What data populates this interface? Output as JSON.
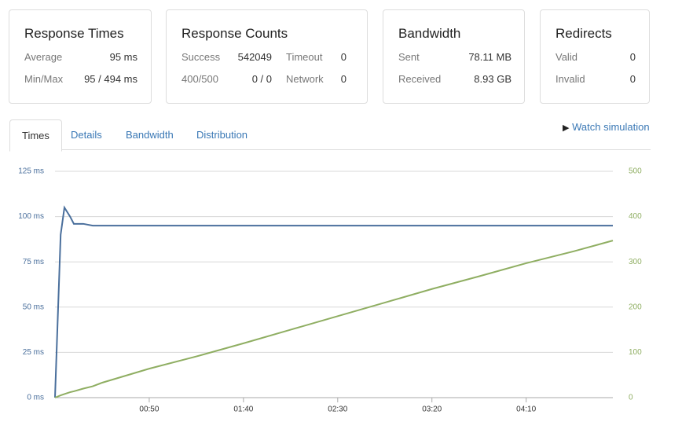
{
  "cards": [
    {
      "title": "Response Times",
      "rows": [
        [
          "Average",
          "95 ms"
        ],
        [
          "Min/Max",
          "95 / 494 ms"
        ]
      ]
    },
    {
      "title": "Response Counts",
      "rows": [
        [
          "Success",
          "542049",
          "Timeout",
          "0"
        ],
        [
          "400/500",
          "0 / 0",
          "Network",
          "0"
        ]
      ]
    },
    {
      "title": "Bandwidth",
      "rows": [
        [
          "Sent",
          "78.11 MB"
        ],
        [
          "Received",
          "8.93 GB"
        ]
      ]
    },
    {
      "title": "Redirects",
      "rows": [
        [
          "Valid",
          "0"
        ],
        [
          "Invalid",
          "0"
        ]
      ]
    }
  ],
  "tabs": [
    "Times",
    "Details",
    "Bandwidth",
    "Distribution"
  ],
  "watch_link": "Watch simulation",
  "chart_data": {
    "type": "line",
    "x": [
      0,
      3,
      5,
      8,
      10,
      15,
      20,
      25,
      50,
      75,
      100,
      125,
      150,
      175,
      200,
      225,
      250,
      275,
      296
    ],
    "series": [
      {
        "color": "#4a6f9c",
        "values": [
          0,
          90,
          105,
          100,
          96,
          96,
          95,
          95,
          95,
          95,
          95,
          95,
          95,
          95,
          95,
          95,
          95,
          95,
          95
        ]
      },
      {
        "color": "#8fae62",
        "axis": "y2",
        "values": [
          0,
          5,
          8,
          12,
          14,
          20,
          25,
          33,
          64,
          91,
          120,
          150,
          180,
          210,
          240,
          268,
          297,
          323,
          347
        ]
      }
    ],
    "xlim": [
      0,
      296
    ],
    "xticks": [
      {
        "value": 50,
        "label": "00:50"
      },
      {
        "value": 100,
        "label": "01:40"
      },
      {
        "value": 150,
        "label": "02:30"
      },
      {
        "value": 200,
        "label": "03:20"
      },
      {
        "value": 250,
        "label": "04:10"
      }
    ],
    "ylim": [
      0,
      125
    ],
    "yticks": [
      {
        "value": 0,
        "label": "0 ms"
      },
      {
        "value": 25,
        "label": "25 ms"
      },
      {
        "value": 50,
        "label": "50 ms"
      },
      {
        "value": 75,
        "label": "75 ms"
      },
      {
        "value": 100,
        "label": "100 ms"
      },
      {
        "value": 125,
        "label": "125 ms"
      }
    ],
    "y2lim": [
      0,
      500
    ],
    "y2ticks": [
      0,
      100,
      200,
      300,
      400,
      500
    ],
    "grid": true
  }
}
